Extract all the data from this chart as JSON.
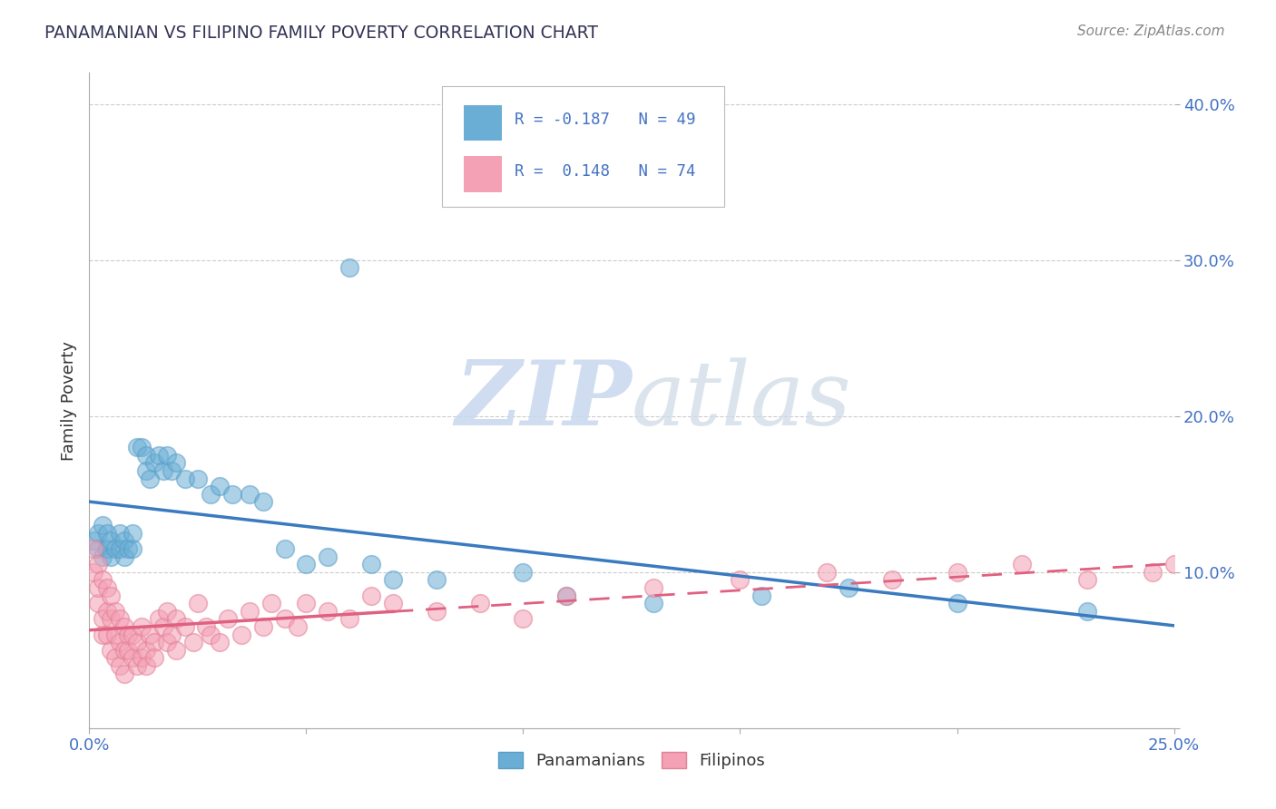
{
  "title": "PANAMANIAN VS FILIPINO FAMILY POVERTY CORRELATION CHART",
  "source": "Source: ZipAtlas.com",
  "ylabel_label": "Family Poverty",
  "x_min": 0.0,
  "x_max": 0.25,
  "y_min": 0.0,
  "y_max": 0.42,
  "panamanian_color": "#6aaed6",
  "panamanian_edge": "#5a9ec6",
  "filipino_color": "#f4a0b5",
  "filipino_edge": "#e48095",
  "trend_pan_color": "#3a7abf",
  "trend_fil_color": "#e06080",
  "panamanian_R": -0.187,
  "panamanian_N": 49,
  "filipino_R": 0.148,
  "filipino_N": 74,
  "legend_label_pan": "Panamanians",
  "legend_label_fil": "Filipinos",
  "watermark_text": "ZIPatlas",
  "pan_x": [
    0.001,
    0.002,
    0.002,
    0.003,
    0.003,
    0.004,
    0.004,
    0.005,
    0.005,
    0.006,
    0.007,
    0.007,
    0.008,
    0.008,
    0.009,
    0.01,
    0.01,
    0.011,
    0.012,
    0.013,
    0.013,
    0.014,
    0.015,
    0.016,
    0.017,
    0.018,
    0.019,
    0.02,
    0.022,
    0.025,
    0.028,
    0.03,
    0.033,
    0.037,
    0.04,
    0.045,
    0.05,
    0.055,
    0.06,
    0.065,
    0.07,
    0.08,
    0.1,
    0.11,
    0.13,
    0.155,
    0.175,
    0.2,
    0.23
  ],
  "pan_y": [
    0.12,
    0.115,
    0.125,
    0.11,
    0.13,
    0.115,
    0.125,
    0.11,
    0.12,
    0.115,
    0.125,
    0.115,
    0.12,
    0.11,
    0.115,
    0.115,
    0.125,
    0.18,
    0.18,
    0.175,
    0.165,
    0.16,
    0.17,
    0.175,
    0.165,
    0.175,
    0.165,
    0.17,
    0.16,
    0.16,
    0.15,
    0.155,
    0.15,
    0.15,
    0.145,
    0.115,
    0.105,
    0.11,
    0.295,
    0.105,
    0.095,
    0.095,
    0.1,
    0.085,
    0.08,
    0.085,
    0.09,
    0.08,
    0.075
  ],
  "fil_x": [
    0.001,
    0.001,
    0.002,
    0.002,
    0.002,
    0.003,
    0.003,
    0.003,
    0.004,
    0.004,
    0.004,
    0.005,
    0.005,
    0.005,
    0.006,
    0.006,
    0.006,
    0.007,
    0.007,
    0.007,
    0.008,
    0.008,
    0.008,
    0.009,
    0.009,
    0.01,
    0.01,
    0.011,
    0.011,
    0.012,
    0.012,
    0.013,
    0.013,
    0.014,
    0.015,
    0.015,
    0.016,
    0.017,
    0.018,
    0.018,
    0.019,
    0.02,
    0.02,
    0.022,
    0.024,
    0.025,
    0.027,
    0.028,
    0.03,
    0.032,
    0.035,
    0.037,
    0.04,
    0.042,
    0.045,
    0.048,
    0.05,
    0.055,
    0.06,
    0.065,
    0.07,
    0.08,
    0.09,
    0.1,
    0.11,
    0.13,
    0.15,
    0.17,
    0.185,
    0.2,
    0.215,
    0.23,
    0.245,
    0.25
  ],
  "fil_y": [
    0.115,
    0.1,
    0.08,
    0.105,
    0.09,
    0.07,
    0.095,
    0.06,
    0.075,
    0.09,
    0.06,
    0.07,
    0.085,
    0.05,
    0.06,
    0.075,
    0.045,
    0.055,
    0.07,
    0.04,
    0.05,
    0.065,
    0.035,
    0.05,
    0.06,
    0.045,
    0.06,
    0.04,
    0.055,
    0.045,
    0.065,
    0.05,
    0.04,
    0.06,
    0.055,
    0.045,
    0.07,
    0.065,
    0.075,
    0.055,
    0.06,
    0.05,
    0.07,
    0.065,
    0.055,
    0.08,
    0.065,
    0.06,
    0.055,
    0.07,
    0.06,
    0.075,
    0.065,
    0.08,
    0.07,
    0.065,
    0.08,
    0.075,
    0.07,
    0.085,
    0.08,
    0.075,
    0.08,
    0.07,
    0.085,
    0.09,
    0.095,
    0.1,
    0.095,
    0.1,
    0.105,
    0.095,
    0.1,
    0.105
  ]
}
